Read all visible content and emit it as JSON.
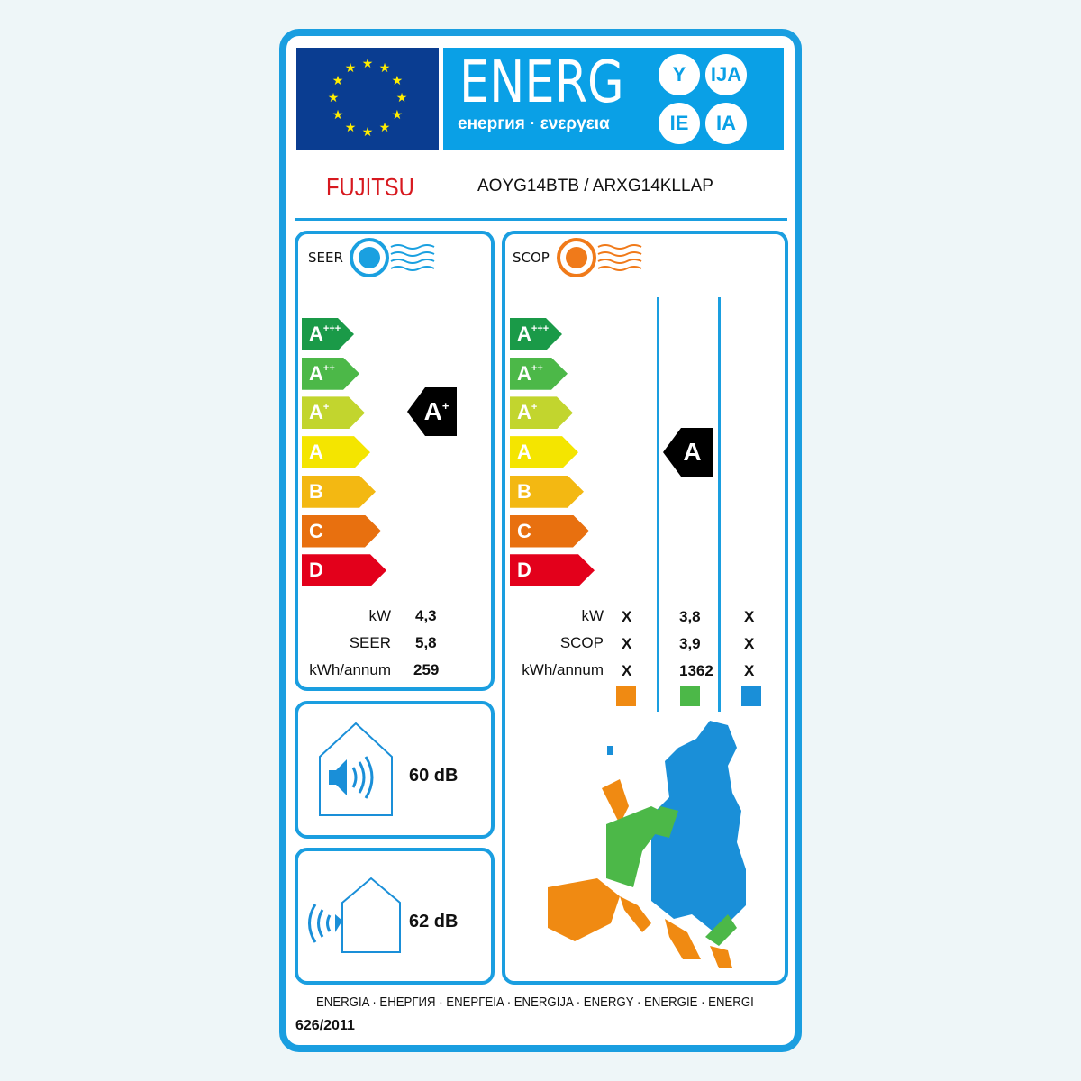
{
  "header": {
    "energy_title": "ENERG",
    "energy_subtitle": "енергия · ενεργεια",
    "suffixes": [
      "Y",
      "IJA",
      "IE",
      "IA"
    ]
  },
  "brand": {
    "logo": "FUJITSU",
    "model": "AOYG14BTB / ARXG14KLLAP"
  },
  "classes": [
    {
      "label": "A",
      "sup": "+++",
      "color": "#1a9a48"
    },
    {
      "label": "A",
      "sup": "++",
      "color": "#4cb848"
    },
    {
      "label": "A",
      "sup": "+",
      "color": "#c2d52e"
    },
    {
      "label": "A",
      "sup": "",
      "color": "#f4e500"
    },
    {
      "label": "B",
      "sup": "",
      "color": "#f3b812"
    },
    {
      "label": "C",
      "sup": "",
      "color": "#e8700f"
    },
    {
      "label": "D",
      "sup": "",
      "color": "#e3001b"
    }
  ],
  "seer": {
    "title": "SEER",
    "rating": "A",
    "rating_sup": "+",
    "rows": [
      {
        "label": "kW",
        "value": "4,3"
      },
      {
        "label": "SEER",
        "value": "5,8"
      },
      {
        "label": "kWh/annum",
        "value": "259"
      }
    ]
  },
  "scop": {
    "title": "SCOP",
    "rating": "A",
    "rows": [
      {
        "label": "kW",
        "values": [
          "X",
          "3,8",
          "X"
        ]
      },
      {
        "label": "SCOP",
        "values": [
          "X",
          "3,9",
          "X"
        ]
      },
      {
        "label": "kWh/annum",
        "values": [
          "X",
          "1362",
          "X"
        ]
      }
    ],
    "zone_colors": [
      "#f08a12",
      "#4cb848",
      "#1a8fd8"
    ]
  },
  "sound": {
    "indoor": "60 dB",
    "outdoor": "62 dB"
  },
  "footer": {
    "languages": "ENERGIA · ЕНЕРГИЯ · ΕΝΕΡΓΕΙΑ · ENERGIJA · ENERGY · ENERGIE · ENERGI",
    "regulation": "626/2011"
  }
}
